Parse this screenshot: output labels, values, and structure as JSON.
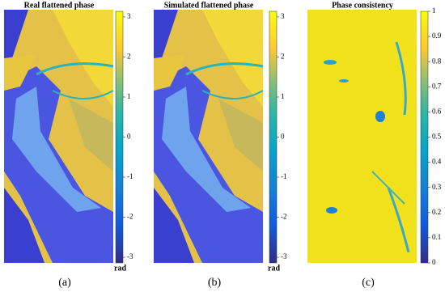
{
  "panels": [
    {
      "title": "Real flattened phase",
      "caption": "(a)",
      "colorbar": {
        "lim": [
          -3.14,
          3.14
        ],
        "ticks": [
          3,
          2,
          1,
          0,
          -1,
          -2,
          -3
        ],
        "unit": "rad"
      }
    },
    {
      "title": "Simulated flattened phase",
      "caption": "(b)",
      "colorbar": {
        "lim": [
          -3.14,
          3.14
        ],
        "ticks": [
          3,
          2,
          1,
          0,
          -1,
          -2,
          -3
        ],
        "unit": "rad"
      }
    },
    {
      "title": "Phase consistency",
      "caption": "(c)",
      "colorbar": {
        "lim": [
          0,
          1
        ],
        "ticks": [
          0,
          0.1,
          0.2,
          0.3,
          0.4,
          0.5,
          0.6,
          0.7,
          0.8,
          0.9,
          1
        ]
      }
    }
  ]
}
